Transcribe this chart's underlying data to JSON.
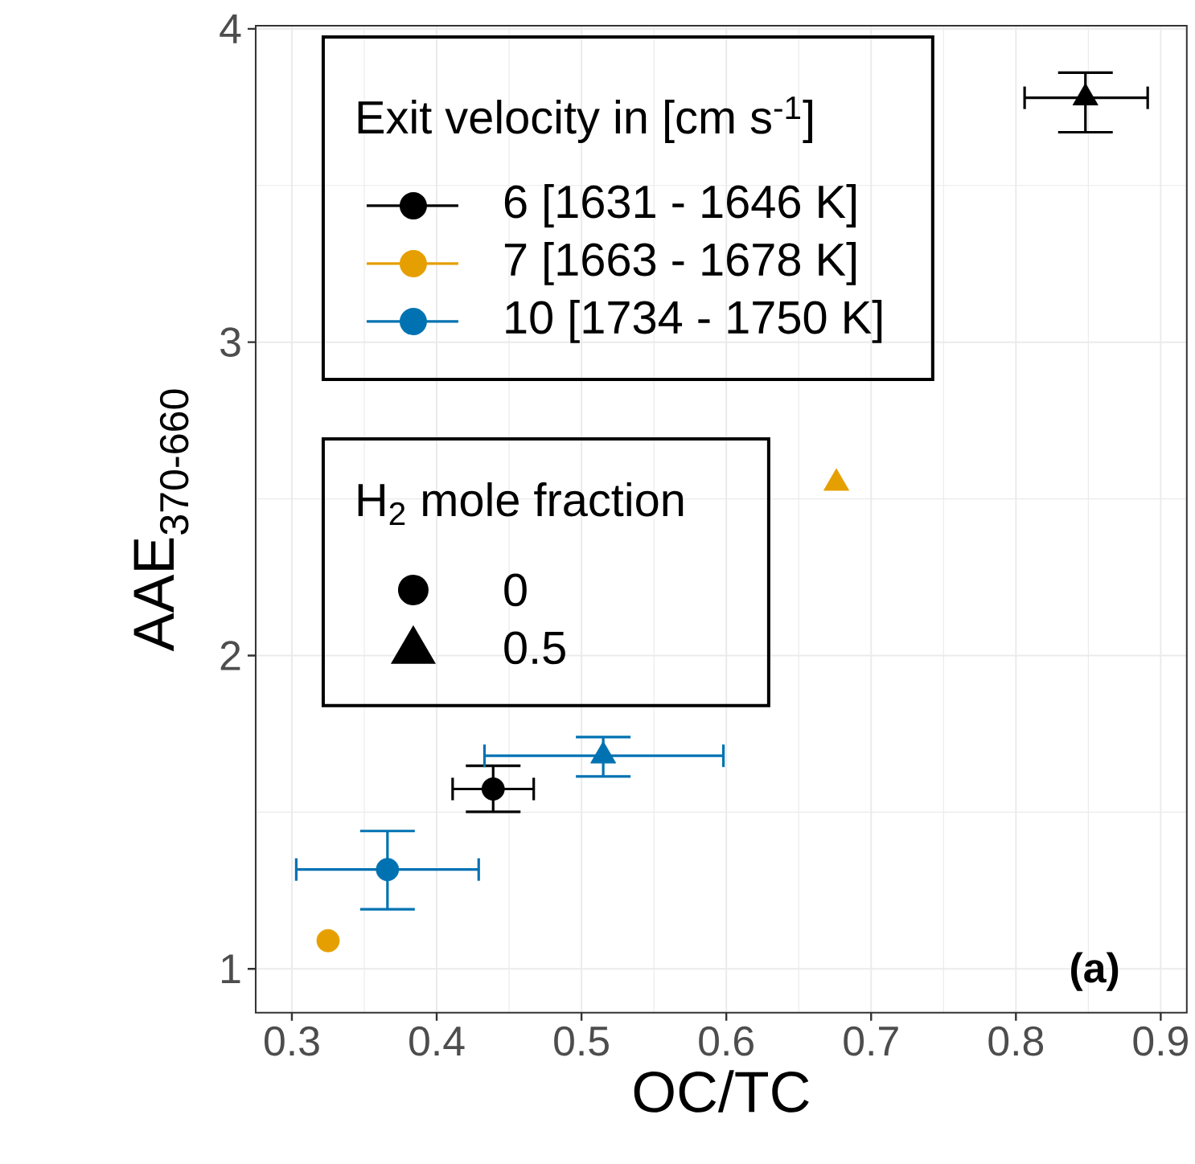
{
  "chart_data": {
    "type": "scatter",
    "xlabel": "OC/TC",
    "ylabel": "AAE$_{370-660}$",
    "xlim": [
      0.275,
      0.918
    ],
    "ylim": [
      0.86,
      4.01
    ],
    "xticks": [
      0.3,
      0.4,
      0.5,
      0.6,
      0.7,
      0.8,
      0.9
    ],
    "yticks": [
      1,
      2,
      3,
      4
    ],
    "grid": true,
    "legend": "top left",
    "legend_title": "Exit velocity in [cm s$^{-1}$]",
    "annotations": [
      "H$_{2}$ mole fraction",
      "0",
      "0.5",
      "(a)"
    ],
    "series": [
      {
        "name": "6   [1631 - 1646 K]",
        "color": "#000000",
        "marker": "circle",
        "x": [
          0.439
        ],
        "values": [
          1.574
        ],
        "xerrors": [
          [
            0.411,
            0.467
          ]
        ],
        "errors": [
          [
            1.501,
            1.648
          ]
        ]
      },
      {
        "name": "7   [1663 - 1678 K]",
        "color": "#E69F00",
        "marker": "circle",
        "x": [
          0.325
        ],
        "values": [
          1.09
        ]
      },
      {
        "name": "10 [1734 - 1750 K]",
        "color": "#0072B2",
        "marker": "circle",
        "x": [
          0.366
        ],
        "values": [
          1.317
        ],
        "xerrors": [
          [
            0.303,
            0.429
          ]
        ],
        "errors": [
          [
            1.19,
            1.44
          ]
        ]
      },
      {
        "color": "#000000",
        "marker": "triangle",
        "x": [
          0.848
        ],
        "values": [
          3.78
        ],
        "xerrors": [
          [
            0.806,
            0.891
          ]
        ],
        "errors": [
          [
            3.67,
            3.86
          ]
        ]
      },
      {
        "color": "#E69F00",
        "marker": "triangle",
        "x": [
          0.676
        ],
        "values": [
          2.55
        ]
      },
      {
        "color": "#0072B2",
        "marker": "triangle",
        "x": [
          0.515
        ],
        "values": [
          1.68
        ],
        "xerrors": [
          [
            0.433,
            0.598
          ]
        ],
        "errors": [
          [
            1.614,
            1.74
          ]
        ]
      }
    ]
  }
}
